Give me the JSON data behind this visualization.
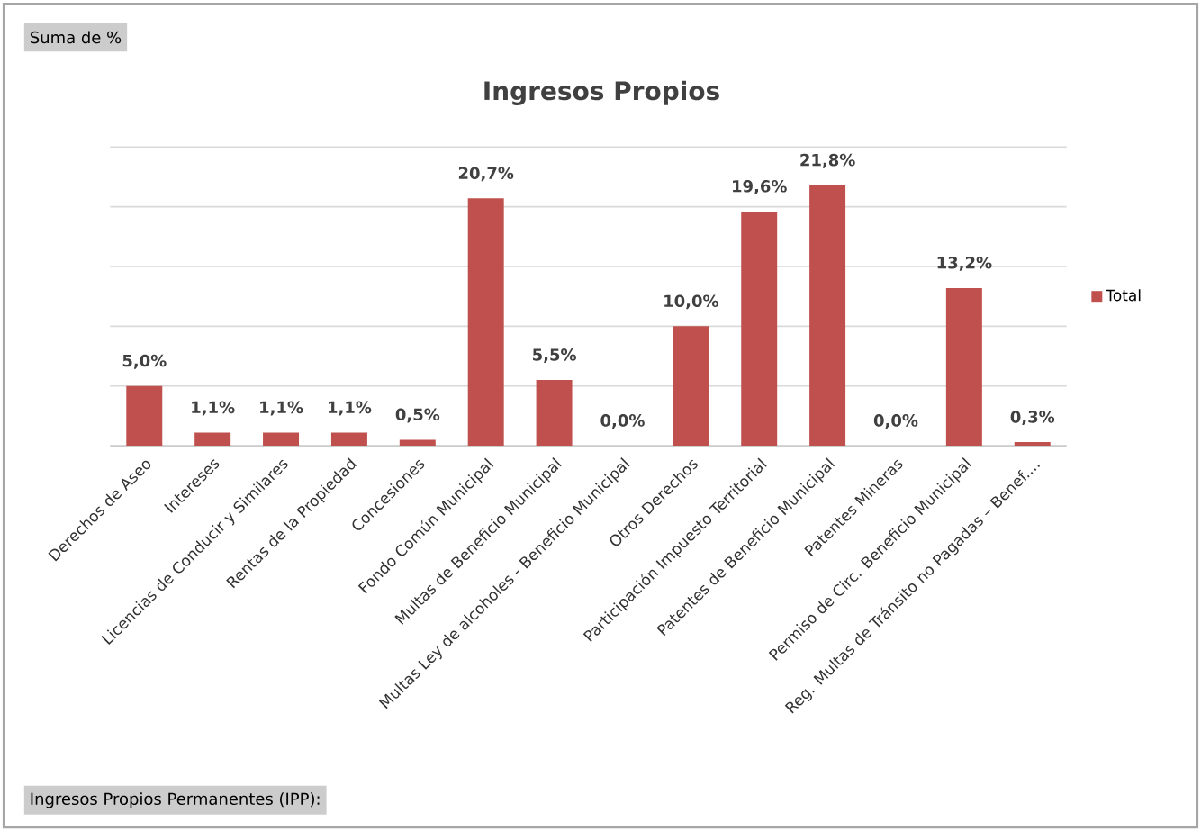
{
  "chart_data": {
    "type": "bar",
    "title": "Ingresos Propios",
    "categories": [
      "Derechos de Aseo",
      "Intereses",
      "Licencias de Conducir y Similares",
      "Rentas de la Propiedad",
      "Concesiones",
      "Fondo Común Municipal",
      "Multas de Beneficio Municipal",
      "Multas Ley de alcoholes - Beneficio Municipal",
      "Otros Derechos",
      "Participación Impuesto Territorial",
      "Patentes de Beneficio Municipal",
      "Patentes Mineras",
      "Permiso de Circ. Beneficio Municipal",
      "Reg. Multas de Tránsito no Pagadas – Benef...."
    ],
    "series": [
      {
        "name": "Total",
        "color": "#c0504d",
        "values": [
          5.0,
          1.1,
          1.1,
          1.1,
          0.5,
          20.7,
          5.5,
          0.0,
          10.0,
          19.6,
          21.8,
          0.0,
          13.2,
          0.3
        ],
        "value_labels": [
          "5,0%",
          "1,1%",
          "1,1%",
          "1,1%",
          "0,5%",
          "20,7%",
          "5,5%",
          "0,0%",
          "10,0%",
          "19,6%",
          "21,8%",
          "0,0%",
          "13,2%",
          "0,3%"
        ]
      }
    ],
    "ylim": [
      0,
      25
    ],
    "yticks": [
      {
        "value": 0,
        "label": null
      },
      {
        "value": 5,
        "label": null
      },
      {
        "value": 10,
        "label": null
      },
      {
        "value": 15,
        "label": null
      },
      {
        "value": 20,
        "label": null
      },
      {
        "value": 25,
        "label": null
      }
    ],
    "grid": "y",
    "legend": "right",
    "tick_labels": "x",
    "annotations": [
      "Suma de %",
      "Ingresos Propios Permanentes (IPP):"
    ]
  }
}
